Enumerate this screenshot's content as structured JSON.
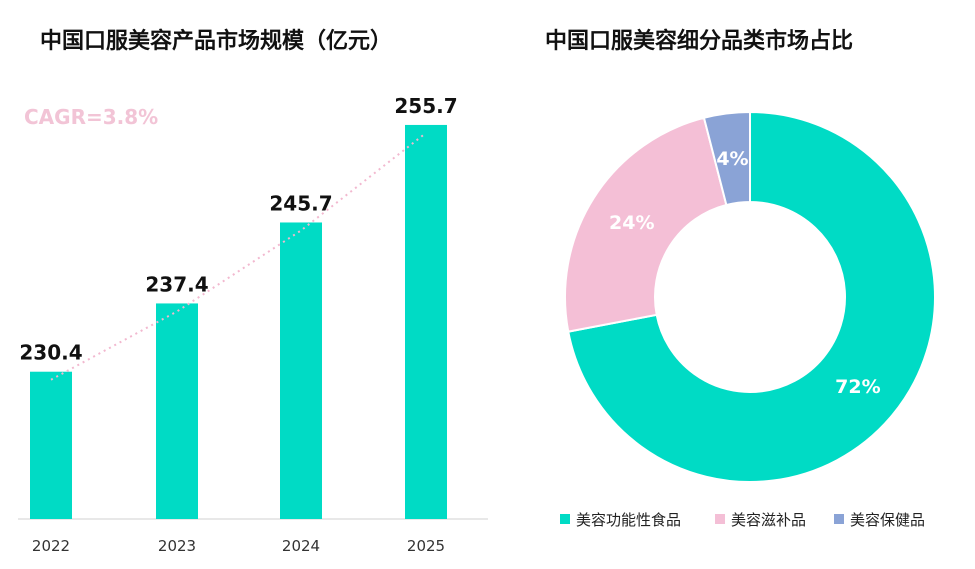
{
  "chart_data": [
    {
      "type": "bar",
      "title": "中国口服美容产品市场规模（亿元）",
      "categories": [
        "2022",
        "2023",
        "2024",
        "2025"
      ],
      "values": [
        230.4,
        237.4,
        245.7,
        255.7
      ],
      "value_labels": [
        "230.4",
        "237.4",
        "245.7",
        "255.7"
      ],
      "ylim": [
        215.3,
        260
      ],
      "annotation": "CAGR=3.8%",
      "trendline": "dotted",
      "grid": false,
      "color": "#00dbc5",
      "trend_color": "#f2b8cf"
    },
    {
      "type": "pie",
      "title": "中国口服美容细分品类市场占比",
      "donut": true,
      "labels": [
        "美容功能性食品",
        "美容滋补品",
        "美容保健品"
      ],
      "values": [
        72,
        24,
        4
      ],
      "value_labels": [
        "72%",
        "24%",
        "4%"
      ],
      "colors": [
        "#00dbc5",
        "#f4bfd6",
        "#8aa3d6"
      ],
      "legend_position": "bottom"
    }
  ]
}
